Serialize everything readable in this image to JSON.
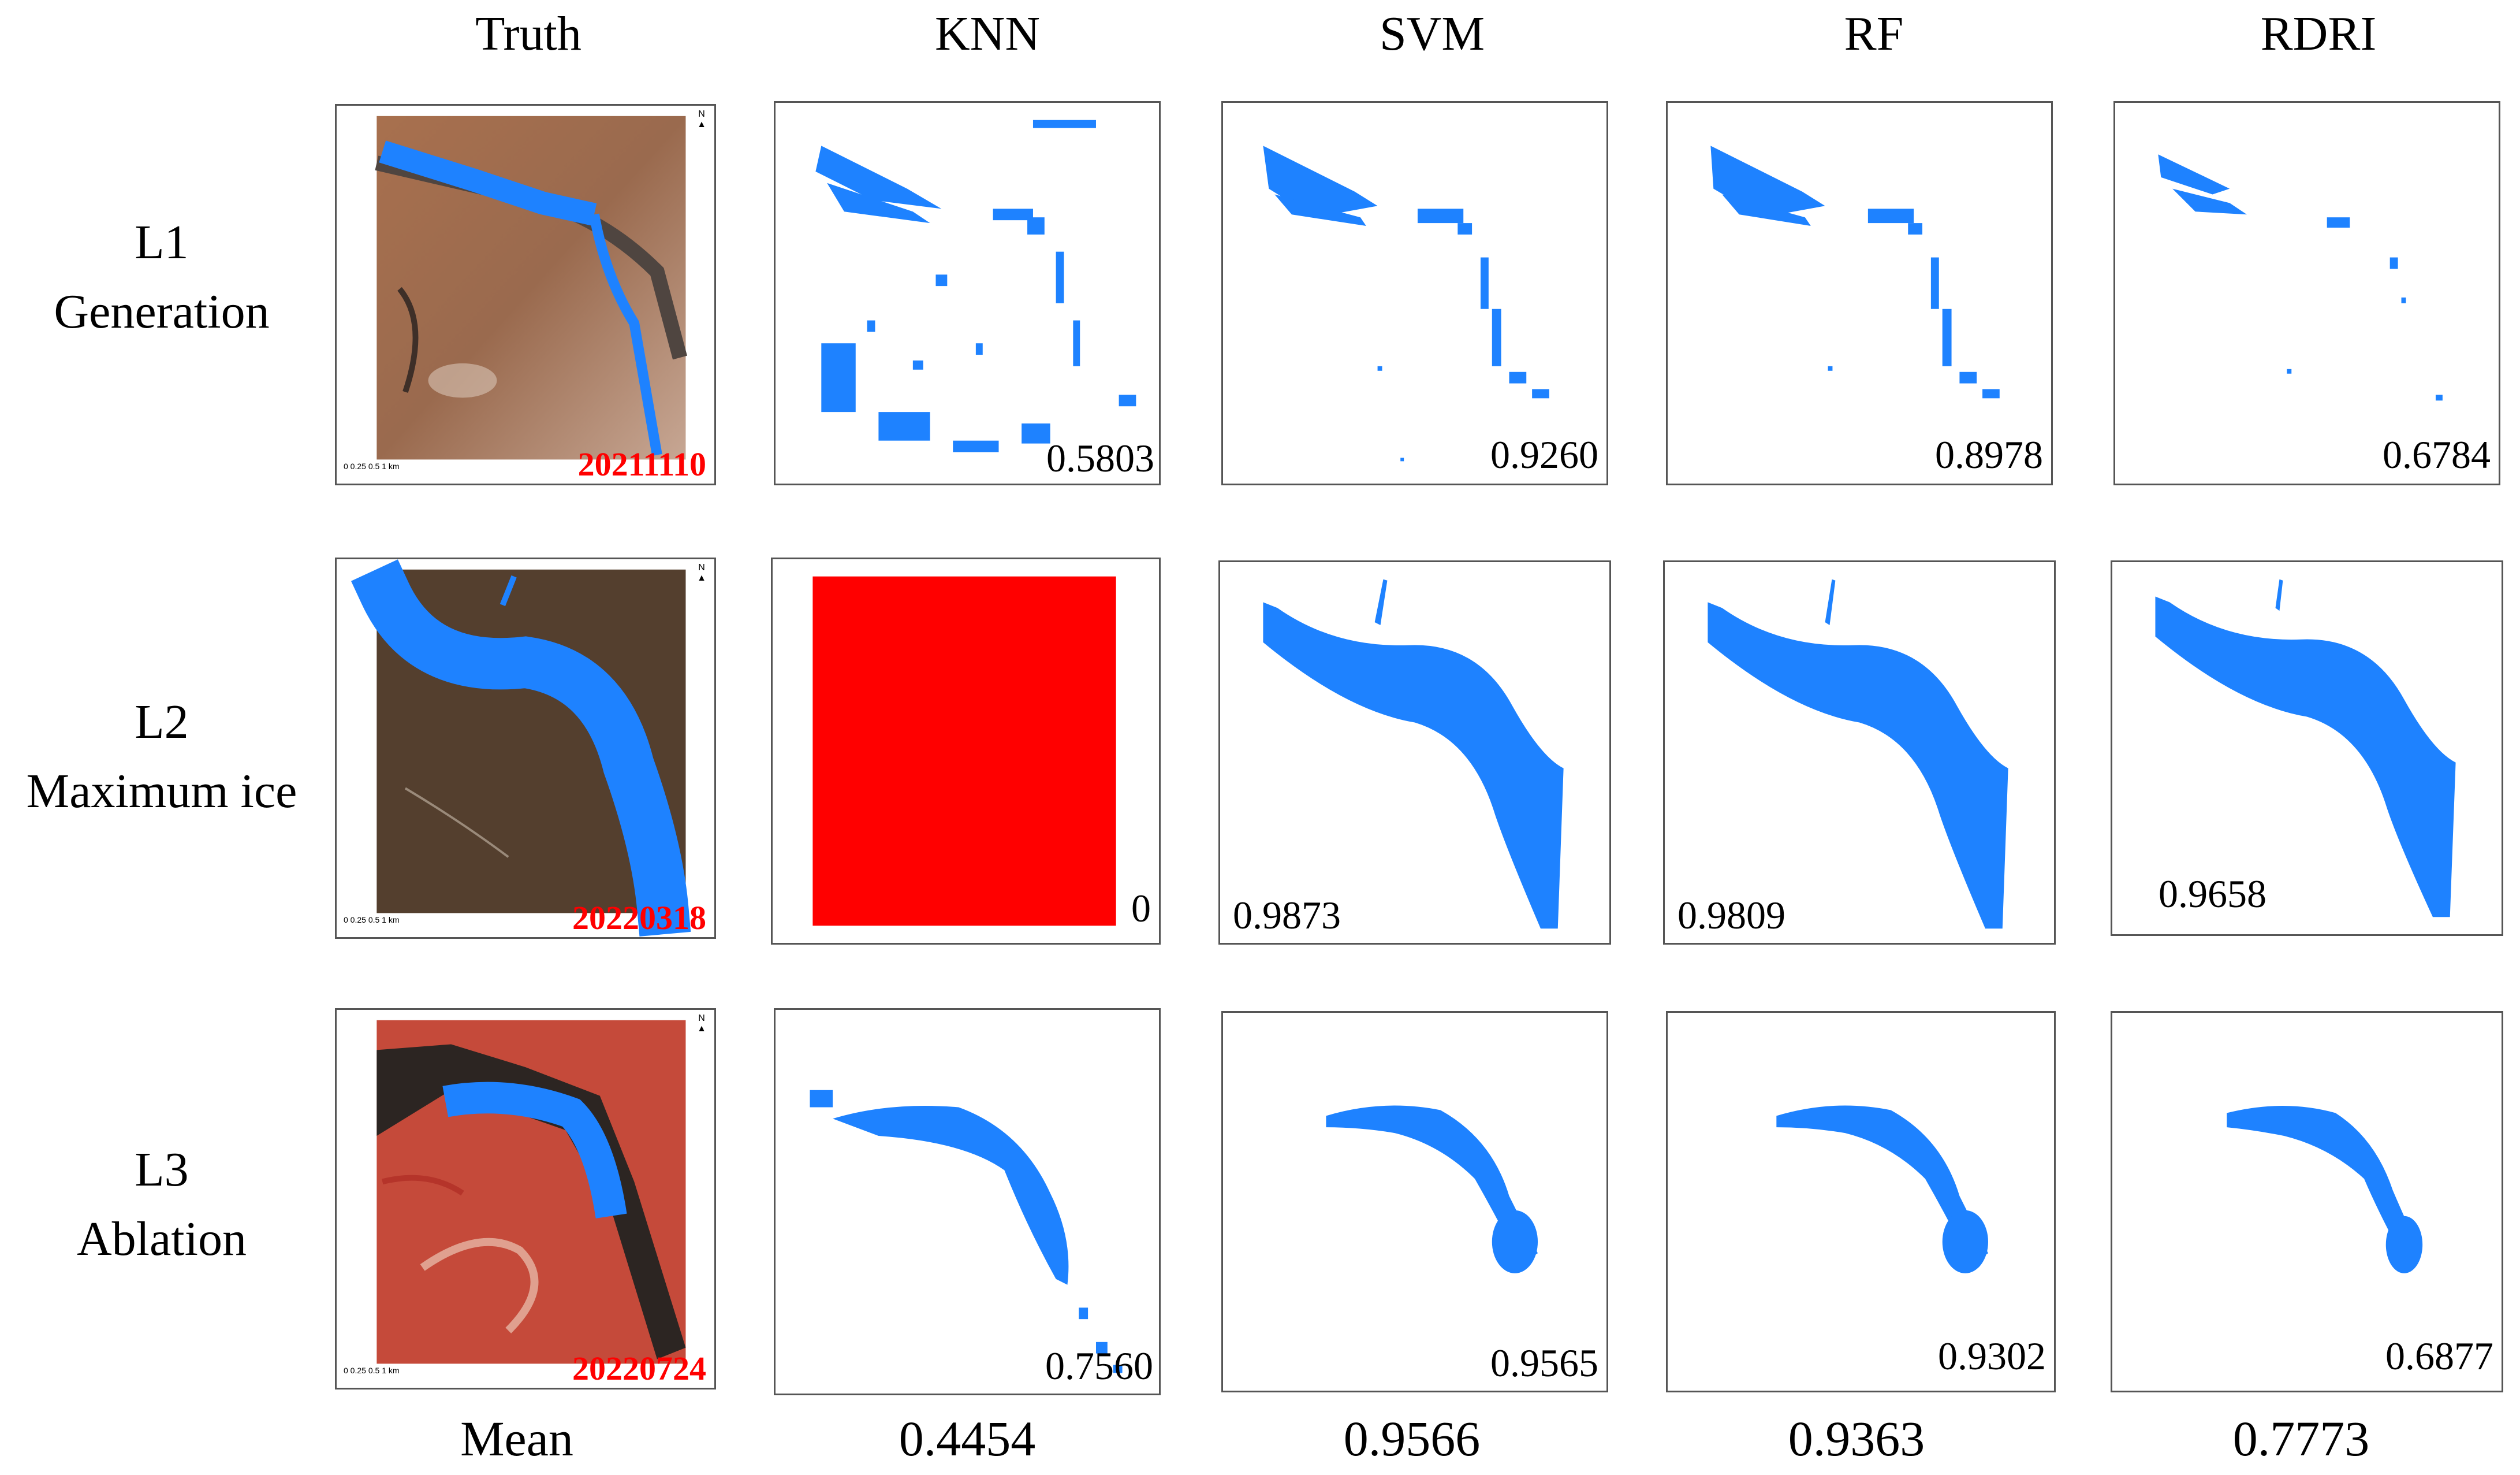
{
  "headers": {
    "truth": "Truth",
    "knn": "KNN",
    "svm": "SVM",
    "rf": "RF",
    "rdri": "RDRI"
  },
  "rows": [
    {
      "id": "L1",
      "label_line1": "L1",
      "label_line2": "Generation",
      "date": "20211110",
      "scores": {
        "knn": "0.5803",
        "svm": "0.9260",
        "rf": "0.8978",
        "rdri": "0.6784"
      }
    },
    {
      "id": "L2",
      "label_line1": "L2",
      "label_line2": "Maximum ice",
      "date": "20220318",
      "scores": {
        "knn": "0",
        "svm": "0.9873",
        "rf": "0.9809",
        "rdri": "0.9658"
      }
    },
    {
      "id": "L3",
      "label_line1": "L3",
      "label_line2": "Ablation",
      "date": "20220724",
      "scores": {
        "knn": "0.7560",
        "svm": "0.9565",
        "rf": "0.9302",
        "rdri": "0.6877"
      }
    }
  ],
  "mean": {
    "label": "Mean",
    "knn": "0.4454",
    "svm": "0.9566",
    "rf": "0.9363",
    "rdri": "0.7773"
  },
  "map": {
    "scale_ticks": "0 0.25 0.5 1",
    "scale_unit": "km",
    "north": "N"
  },
  "colors": {
    "ice": "#1e82ff",
    "error": "#ff0000",
    "date": "#ff0000"
  },
  "icons": [
    "north-arrow-icon",
    "scale-bar-icon"
  ]
}
